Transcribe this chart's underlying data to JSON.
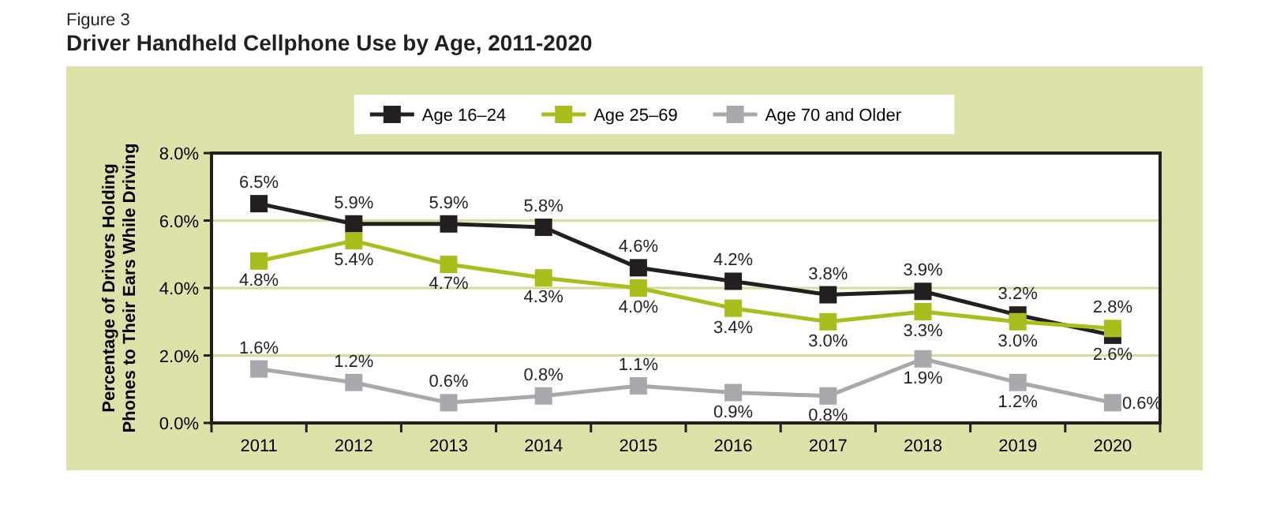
{
  "chart_data": {
    "type": "line",
    "title": "Driver Handheld Cellphone Use by Age, 2011-2020",
    "annotations": [
      "Figure 3"
    ],
    "ylabel": "Percentage of Drivers Holding\nPhones to Their Ears While Driving",
    "categories": [
      "2011",
      "2012",
      "2013",
      "2014",
      "2015",
      "2016",
      "2017",
      "2018",
      "2019",
      "2020"
    ],
    "ylim": [
      0,
      8
    ],
    "yticks": [
      {
        "value": 0,
        "label": "0.0%"
      },
      {
        "value": 2,
        "label": "2.0%"
      },
      {
        "value": 4,
        "label": "4.0%"
      },
      {
        "value": 6,
        "label": "6.0%"
      },
      {
        "value": 8,
        "label": "8.0%"
      }
    ],
    "grid": "y",
    "legend": "top",
    "marker": "square",
    "line_style": "solid",
    "series": [
      {
        "name": "Age 16–24",
        "color": "#231f20",
        "values": [
          6.5,
          5.9,
          5.9,
          5.8,
          4.6,
          4.2,
          3.8,
          3.9,
          3.2,
          2.6
        ],
        "value_labels": [
          "6.5%",
          "5.9%",
          "5.9%",
          "5.8%",
          "4.6%",
          "4.2%",
          "3.8%",
          "3.9%",
          "3.2%",
          "2.6%"
        ]
      },
      {
        "name": "Age 25–69",
        "color": "#a9bd1c",
        "values": [
          4.8,
          5.4,
          4.7,
          4.3,
          4.0,
          3.4,
          3.0,
          3.3,
          3.0,
          2.8
        ],
        "value_labels": [
          "4.8%",
          "5.4%",
          "4.7%",
          "4.3%",
          "4.0%",
          "3.4%",
          "3.0%",
          "3.3%",
          "3.0%",
          "2.8%"
        ]
      },
      {
        "name": "Age 70 and Older",
        "color": "#a7a9ac",
        "values": [
          1.6,
          1.2,
          0.6,
          0.8,
          1.1,
          0.9,
          0.8,
          1.9,
          1.2,
          0.6
        ],
        "value_labels": [
          "1.6%",
          "1.2%",
          "0.6%",
          "0.8%",
          "1.1%",
          "0.9%",
          "0.8%",
          "1.9%",
          "1.2%",
          "0.6%"
        ]
      }
    ]
  }
}
